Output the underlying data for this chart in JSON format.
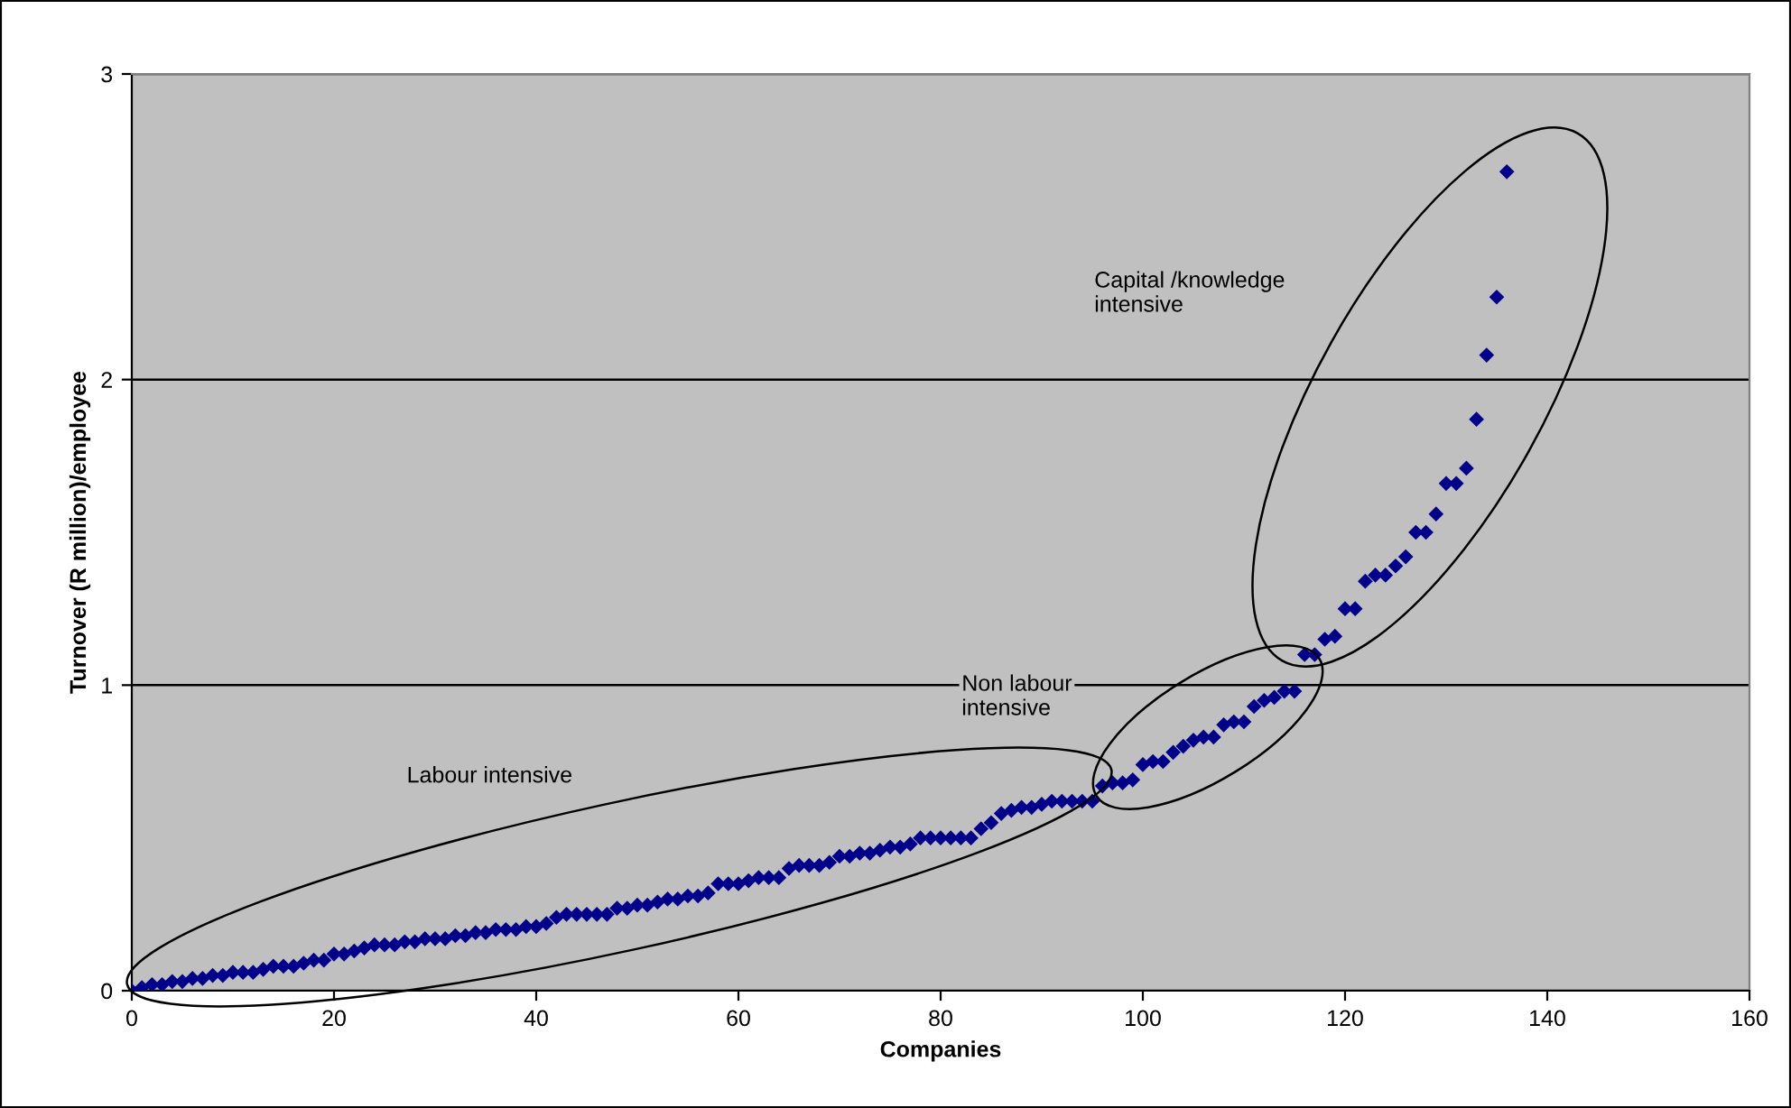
{
  "chart_data": {
    "type": "scatter",
    "xlabel": "Companies",
    "ylabel": "Turnover (R million)/employee",
    "xlim": [
      0,
      160
    ],
    "xticks": [
      0,
      20,
      40,
      60,
      80,
      100,
      120,
      140,
      160
    ],
    "ylim": [
      0,
      3
    ],
    "yticks": [
      0,
      1,
      2,
      3
    ],
    "grid": "y",
    "marker": "diamond",
    "series": [
      {
        "color": "#00008b",
        "x": [
          0,
          1,
          2,
          3,
          4,
          5,
          6,
          7,
          8,
          9,
          10,
          11,
          12,
          13,
          14,
          15,
          16,
          17,
          18,
          19,
          20,
          21,
          22,
          23,
          24,
          25,
          26,
          27,
          28,
          29,
          30,
          31,
          32,
          33,
          34,
          35,
          36,
          37,
          38,
          39,
          40,
          41,
          42,
          43,
          44,
          45,
          46,
          47,
          48,
          49,
          50,
          51,
          52,
          53,
          54,
          55,
          56,
          57,
          58,
          59,
          60,
          61,
          62,
          63,
          64,
          65,
          66,
          67,
          68,
          69,
          70,
          71,
          72,
          73,
          74,
          75,
          76,
          77,
          78,
          79,
          80,
          81,
          82,
          83,
          84,
          85,
          86,
          87,
          88,
          89,
          90,
          91,
          92,
          93,
          94,
          95,
          96,
          97,
          98,
          99,
          100,
          101,
          102,
          103,
          104,
          105,
          106,
          107,
          108,
          109,
          110,
          111,
          112,
          113,
          114,
          115,
          116,
          117,
          118,
          119,
          120,
          121,
          122,
          123,
          124,
          125,
          126,
          127,
          128,
          129,
          130,
          131,
          132,
          133,
          134,
          135,
          136
        ],
        "values": [
          0,
          0.01,
          0.02,
          0.02,
          0.03,
          0.03,
          0.04,
          0.04,
          0.05,
          0.05,
          0.06,
          0.06,
          0.06,
          0.07,
          0.08,
          0.08,
          0.08,
          0.09,
          0.1,
          0.1,
          0.12,
          0.12,
          0.13,
          0.14,
          0.15,
          0.15,
          0.15,
          0.16,
          0.16,
          0.17,
          0.17,
          0.17,
          0.18,
          0.18,
          0.19,
          0.19,
          0.2,
          0.2,
          0.2,
          0.21,
          0.21,
          0.22,
          0.24,
          0.25,
          0.25,
          0.25,
          0.25,
          0.25,
          0.27,
          0.27,
          0.28,
          0.28,
          0.29,
          0.3,
          0.3,
          0.31,
          0.31,
          0.32,
          0.35,
          0.35,
          0.35,
          0.36,
          0.37,
          0.37,
          0.37,
          0.4,
          0.41,
          0.41,
          0.41,
          0.42,
          0.44,
          0.44,
          0.45,
          0.45,
          0.46,
          0.47,
          0.47,
          0.48,
          0.5,
          0.5,
          0.5,
          0.5,
          0.5,
          0.5,
          0.53,
          0.55,
          0.58,
          0.59,
          0.6,
          0.6,
          0.61,
          0.62,
          0.62,
          0.62,
          0.62,
          0.62,
          0.67,
          0.68,
          0.68,
          0.69,
          0.74,
          0.75,
          0.75,
          0.78,
          0.8,
          0.82,
          0.83,
          0.83,
          0.87,
          0.88,
          0.88,
          0.93,
          0.95,
          0.96,
          0.98,
          0.98,
          1.1,
          1.1,
          1.15,
          1.16,
          1.25,
          1.25,
          1.34,
          1.36,
          1.36,
          1.39,
          1.42,
          1.5,
          1.5,
          1.56,
          1.66,
          1.66,
          1.71,
          1.87,
          2.08,
          2.27,
          2.68
        ]
      }
    ],
    "annotations": [
      "Labour intensive",
      "Non labour\nintensive",
      "Capital /knowledge\nintensive"
    ]
  }
}
